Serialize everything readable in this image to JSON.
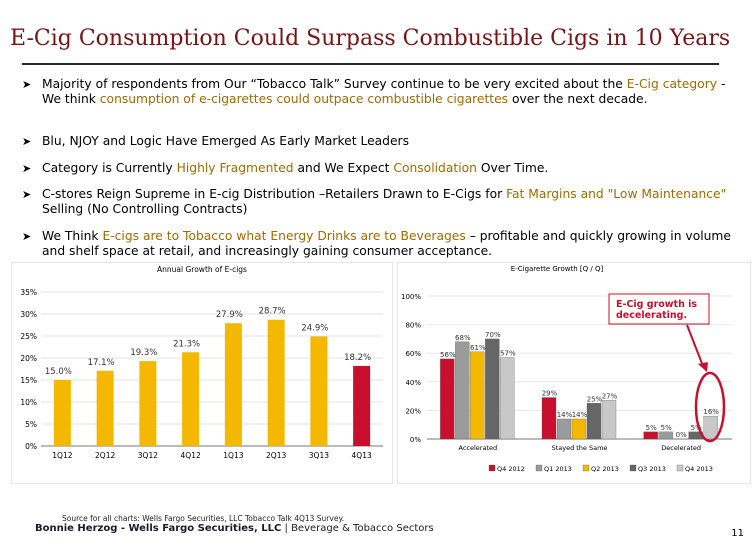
{
  "title": "E-Cig Consumption Could Surpass Combustible Cigs in 10 Years",
  "bullets": [
    {
      "parts": [
        {
          "t": "Majority of respondents from Our “Tobacco Talk” Survey continue to be very excited about the ",
          "h": false
        },
        {
          "t": "E-Cig category",
          "h": true
        },
        {
          "t": " - We think ",
          "h": false
        },
        {
          "t": "consumption of e-cigarettes could outpace combustible cigarettes",
          "h": true
        },
        {
          "t": " over the next decade.",
          "h": false
        }
      ]
    },
    {
      "parts": [
        {
          "t": "Blu, NJOY and Logic Have Emerged As Early Market Leaders",
          "h": false
        }
      ]
    },
    {
      "parts": [
        {
          "t": "Category is Currently ",
          "h": false
        },
        {
          "t": "Highly Fragmented",
          "h": true
        },
        {
          "t": " and We Expect ",
          "h": false
        },
        {
          "t": "Consolidation",
          "h": true
        },
        {
          "t": " Over Time.",
          "h": false
        }
      ]
    },
    {
      "parts": [
        {
          "t": "C-stores Reign Supreme in E-cig Distribution –Retailers Drawn to E-Cigs for ",
          "h": false
        },
        {
          "t": "Fat Margins and \"Low Maintenance\"",
          "h": true
        },
        {
          "t": " Selling (No Controlling Contracts)",
          "h": false
        }
      ]
    },
    {
      "parts": [
        {
          "t": "We Think ",
          "h": false
        },
        {
          "t": "E-cigs are to Tobacco what Energy Drinks are to Beverages",
          "h": true
        },
        {
          "t": " – profitable and quickly growing in volume and shelf space at retail, and increasingly gaining consumer acceptance.",
          "h": false
        }
      ]
    }
  ],
  "colors": {
    "title": "#7a1414",
    "highlight": "#a06a00",
    "bar_gold": "#f5b800",
    "bar_red": "#c8102e",
    "q4_2012": "#c8102e",
    "q1_2013": "#9b9b9b",
    "q2_2013": "#f5b800",
    "q3_2013": "#666666",
    "q4_2013": "#c8c8c8"
  },
  "chart_data": [
    {
      "type": "bar",
      "title": "Annual Growth of E-cigs",
      "categories": [
        "1Q12",
        "2Q12",
        "3Q12",
        "4Q12",
        "1Q13",
        "2Q13",
        "3Q13",
        "4Q13"
      ],
      "values": [
        15.0,
        17.1,
        19.3,
        21.3,
        27.9,
        28.7,
        24.9,
        18.2
      ],
      "value_labels": [
        "15.0%",
        "17.1%",
        "19.3%",
        "21.3%",
        "27.9%",
        "28.7%",
        "24.9%",
        "18.2%"
      ],
      "ylim": [
        0,
        35
      ],
      "yticks": [
        "0%",
        "5%",
        "10%",
        "15%",
        "20%",
        "25%",
        "30%",
        "35%"
      ],
      "grid": true
    },
    {
      "type": "bar",
      "title": "E-Cigarette Growth [Q / Q]",
      "categories": [
        "Accelerated",
        "Stayed the Same",
        "Decelerated"
      ],
      "series": [
        {
          "name": "Q4 2012",
          "values": [
            56,
            29,
            5
          ],
          "labels": [
            "56%",
            "29%",
            "5%"
          ]
        },
        {
          "name": "Q1 2013",
          "values": [
            68,
            14,
            5
          ],
          "labels": [
            "68%",
            "14%",
            "5%"
          ]
        },
        {
          "name": "Q2 2013",
          "values": [
            61,
            14,
            0
          ],
          "labels": [
            "61%",
            "14%",
            "0%"
          ]
        },
        {
          "name": "Q3 2013",
          "values": [
            70,
            25,
            5
          ],
          "labels": [
            "70%",
            "25%",
            "5%"
          ]
        },
        {
          "name": "Q4 2013",
          "values": [
            57,
            27,
            16
          ],
          "labels": [
            "57%",
            "27%",
            "16%"
          ]
        }
      ],
      "ylim": [
        0,
        100
      ],
      "yticks": [
        "0%",
        "20%",
        "40%",
        "60%",
        "80%",
        "100%"
      ],
      "legend": "bottom",
      "annotation": "E-Cig growth is decelerating."
    }
  ],
  "source": "Source for all charts: Wells Fargo Securities, LLC Tobacco Talk 4Q13 Survey.",
  "footer": {
    "bold": "Bonnie Herzog - Wells Fargo Securities, LLC",
    "rest": " | Beverage & Tobacco Sectors"
  },
  "page_number": "11"
}
